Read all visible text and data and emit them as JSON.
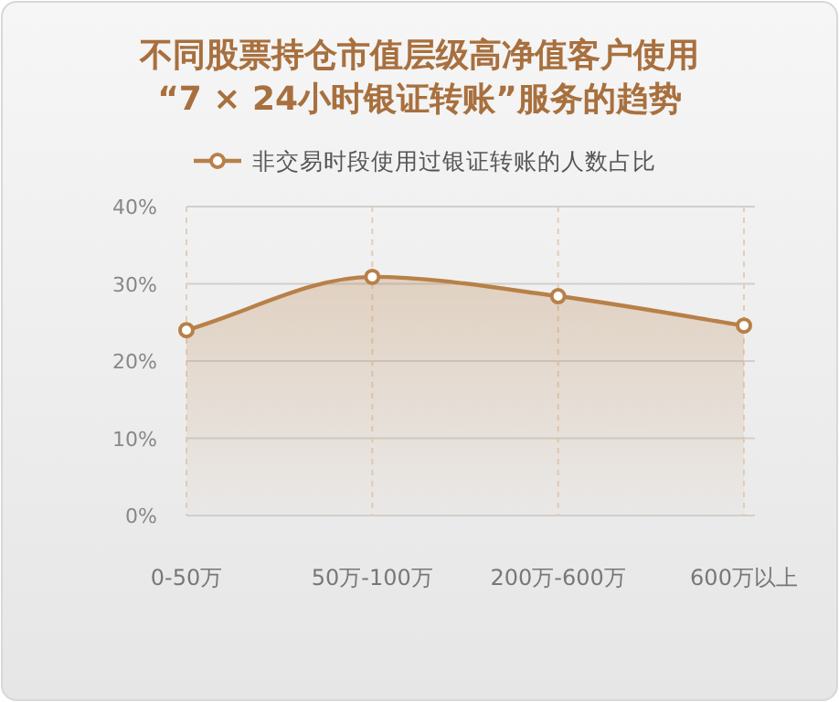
{
  "chart_data": {
    "type": "area",
    "title": "不同股票持仓市值层级高净值客户使用“7 × 24小时银证转账”服务的趋势",
    "categories": [
      "0-50万",
      "50万-100万",
      "200万-600万",
      "600万以上"
    ],
    "series": [
      {
        "name": "非交易时段使用过银证转账的人数占比",
        "color": "#b88048",
        "values": [
          24.0,
          30.9,
          28.4,
          24.6
        ]
      }
    ],
    "ylim": [
      0,
      40
    ],
    "yticks": [
      {
        "value": 0,
        "label": "0%"
      },
      {
        "value": 10,
        "label": "10%"
      },
      {
        "value": 20,
        "label": "20%"
      },
      {
        "value": 30,
        "label": "30%"
      },
      {
        "value": 40,
        "label": "40%"
      }
    ],
    "grid": true,
    "legend": "top",
    "marker": "circle",
    "line_style": "solid"
  }
}
